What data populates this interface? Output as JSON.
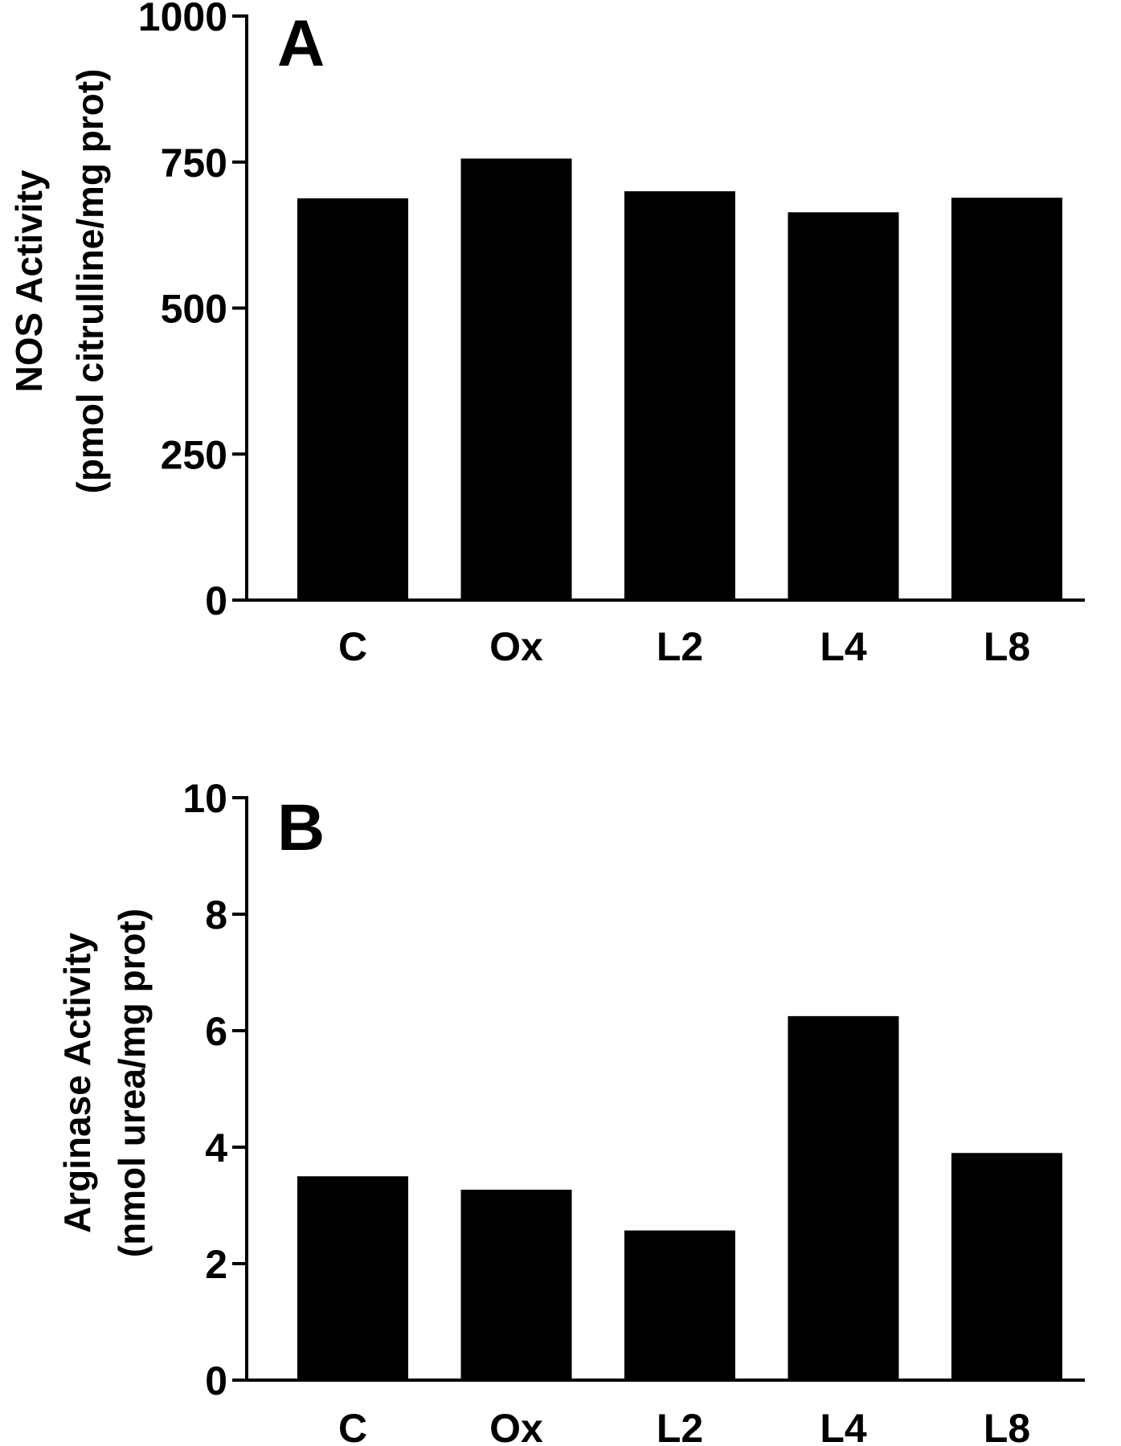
{
  "chart_data": [
    {
      "type": "bar",
      "panel_label": "A",
      "ylabel_line1": "NOS Activity",
      "ylabel_line2": "(pmol citrulline/mg prot)",
      "categories": [
        "C",
        "Ox",
        "L2",
        "L4",
        "L8"
      ],
      "values": [
        688,
        756,
        700,
        664,
        689
      ],
      "ylim": [
        0,
        1000
      ],
      "yticks": [
        0,
        250,
        500,
        750,
        1000
      ],
      "ytick_labels": [
        "0",
        "250",
        "500",
        "750",
        "1000"
      ],
      "bar_color": "#000000",
      "grid": false
    },
    {
      "type": "bar",
      "panel_label": "B",
      "ylabel_line1": "Arginase Activity",
      "ylabel_line2": "(nmol urea/mg prot)",
      "categories": [
        "C",
        "Ox",
        "L2",
        "L4",
        "L8"
      ],
      "values": [
        3.5,
        3.27,
        2.57,
        6.25,
        3.9
      ],
      "ylim": [
        0,
        10
      ],
      "yticks": [
        0,
        2,
        4,
        6,
        8,
        10
      ],
      "ytick_labels": [
        "0",
        "2",
        "4",
        "6",
        "8",
        "10"
      ],
      "bar_color": "#000000",
      "grid": false
    }
  ]
}
